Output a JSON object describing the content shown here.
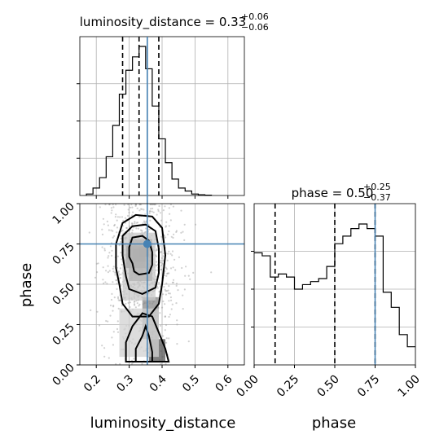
{
  "chart_data": [
    {
      "id": "hist-luminosity_distance",
      "type": "histogram",
      "title": {
        "param": "luminosity_distance",
        "eq": " = ",
        "median": "0.33",
        "upper": "+0.06",
        "lower": "−0.06"
      },
      "xlim": [
        0.15,
        0.65
      ],
      "bin_edges": [
        0.17,
        0.19,
        0.21,
        0.23,
        0.25,
        0.27,
        0.29,
        0.31,
        0.33,
        0.35,
        0.37,
        0.39,
        0.41,
        0.43,
        0.45,
        0.47,
        0.49,
        0.51,
        0.53,
        0.55
      ],
      "counts": [
        0.01,
        0.05,
        0.12,
        0.26,
        0.47,
        0.68,
        0.84,
        0.93,
        1.0,
        0.85,
        0.6,
        0.38,
        0.22,
        0.11,
        0.05,
        0.03,
        0.01,
        0.005,
        0.002
      ],
      "quantiles": [
        0.28,
        0.33,
        0.39
      ],
      "truth": 0.355,
      "grid": true
    },
    {
      "id": "hist-phase",
      "type": "histogram",
      "title": {
        "param": "phase",
        "eq": " = ",
        "median": "0.50",
        "upper": "+0.25",
        "lower": "−0.37"
      },
      "xlim": [
        0.0,
        1.0
      ],
      "bin_edges": [
        0.0,
        0.05,
        0.1,
        0.15,
        0.2,
        0.25,
        0.3,
        0.35,
        0.4,
        0.45,
        0.5,
        0.55,
        0.6,
        0.65,
        0.7,
        0.75,
        0.8,
        0.85,
        0.9,
        0.95,
        1.0
      ],
      "counts": [
        0.74,
        0.72,
        0.58,
        0.6,
        0.58,
        0.5,
        0.53,
        0.55,
        0.57,
        0.65,
        0.8,
        0.85,
        0.9,
        0.93,
        0.9,
        0.85,
        0.48,
        0.38,
        0.2,
        0.12
      ],
      "quantiles": [
        0.13,
        0.5,
        0.75
      ],
      "truth": 0.75,
      "grid": true
    },
    {
      "id": "joint-luminosity_distance-phase",
      "type": "scatter-density-contour",
      "xlabel": "luminosity_distance",
      "ylabel": "phase",
      "xlim": [
        0.15,
        0.65
      ],
      "ylim": [
        0.0,
        1.0
      ],
      "truth": [
        0.355,
        0.75
      ],
      "x_ticks": [
        "0.2",
        "0.3",
        "0.4",
        "0.5",
        "0.6"
      ],
      "y_ticks": [
        "0.00",
        "0.25",
        "0.50",
        "0.75",
        "1.00"
      ],
      "phase_ticks": [
        "0.00",
        "0.25",
        "0.50",
        "0.75",
        "1.00"
      ],
      "phase_xlabel": "phase",
      "grid": true
    }
  ],
  "colors": {
    "truth": "#4682b4",
    "line": "#000000",
    "grid": "#b0b0b0",
    "scatter": "#9a9a9a"
  }
}
